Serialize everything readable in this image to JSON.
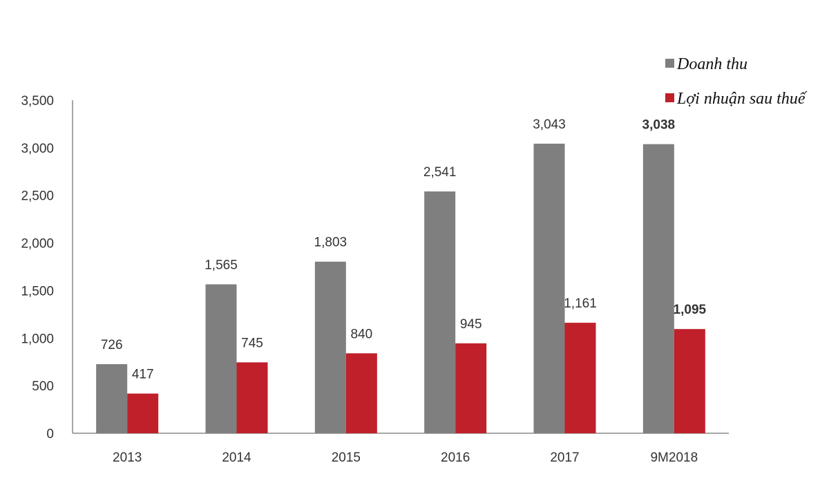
{
  "chart_data": {
    "type": "bar",
    "categories": [
      "2013",
      "2014",
      "2015",
      "2016",
      "2017",
      "9M2018"
    ],
    "series": [
      {
        "name": "Doanh thu",
        "color": "#7f7f7f",
        "values": [
          726,
          1565,
          1803,
          2541,
          3043,
          3038
        ],
        "labels": [
          "726",
          "1,565",
          "1,803",
          "2,541",
          "3,043",
          "3,038"
        ]
      },
      {
        "name": "Lợi nhuận sau thuế",
        "color": "#c0202a",
        "values": [
          417,
          745,
          840,
          945,
          1161,
          1095
        ],
        "labels": [
          "417",
          "745",
          "840",
          "945",
          "1,161",
          "1,095"
        ]
      }
    ],
    "bold_categories": [
      "9M2018"
    ],
    "ylim": [
      0,
      3500
    ],
    "yticks": [
      0,
      500,
      1000,
      1500,
      2000,
      2500,
      3000,
      3500
    ],
    "ytick_labels": [
      "0",
      "500",
      "1,000",
      "1,500",
      "2,000",
      "2,500",
      "3,000",
      "3,500"
    ],
    "title": "",
    "xlabel": "",
    "ylabel": "",
    "grid": false,
    "legend_position": "top-right"
  }
}
